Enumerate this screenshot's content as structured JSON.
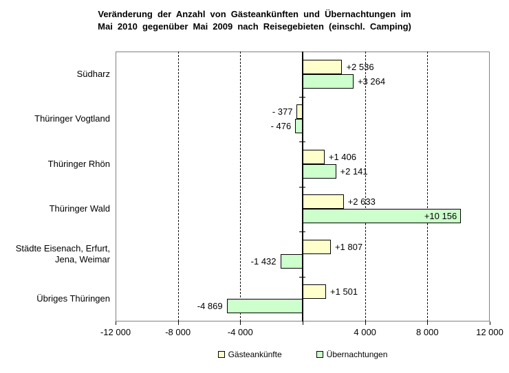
{
  "title": {
    "lines": [
      "Veränderung  der  Anzahl von Gästeankünften  und  Übernachtungen  im",
      "Mai 2010 gegenüber  Mai 2009 nach Reisegebieten  (einschl. Camping)"
    ]
  },
  "legend": {
    "items": [
      {
        "label": "Gästeankünfte",
        "color": "#FFFFCC"
      },
      {
        "label": "Übernachtungen",
        "color": "#CCFFCC"
      }
    ]
  },
  "colors": {
    "bar_yellow": "#FFFFCC",
    "bar_green": "#CCFFCC",
    "bar_border": "#000000",
    "plot_border": "#808080",
    "grid": "#000000",
    "axis": "#000000",
    "text": "#000000",
    "background": "#FFFFFF"
  },
  "chart_data": {
    "type": "bar",
    "orientation": "horizontal",
    "title": "Veränderung der Anzahl von Gästeankünften und Übernachtungen im Mai 2010 gegenüber Mai 2009 nach Reisegebieten (einschl. Camping)",
    "categories": [
      "Südharz",
      "Thüringer Vogtland",
      "Thüringer Rhön",
      "Thüringer Wald",
      "Städte Eisenach, Erfurt,\nJena, Weimar",
      "Übriges Thüringen"
    ],
    "series": [
      {
        "name": "Gästeankünfte",
        "color": "#FFFFCC",
        "values": [
          2536,
          -377,
          1406,
          2633,
          1807,
          1501
        ],
        "labels": [
          "+2 536",
          "- 377",
          "+1 406",
          "+2 633",
          "+1 807",
          "+1 501"
        ]
      },
      {
        "name": "Übernachtungen",
        "color": "#CCFFCC",
        "values": [
          3264,
          -476,
          2141,
          10156,
          -1432,
          -4869
        ],
        "labels": [
          "+3 264",
          "- 476",
          "+2 141",
          "+10 156",
          "-1 432",
          "-4 869"
        ]
      }
    ],
    "xlim": [
      -12000,
      12000
    ],
    "xticks": [
      -12000,
      -8000,
      -4000,
      0,
      4000,
      8000,
      12000
    ],
    "xtick_labels": [
      "-12 000",
      "-8 000",
      "-4 000",
      "",
      "4 000",
      "8 000",
      "12 000"
    ],
    "gridlines": [
      -8000,
      -4000,
      4000,
      8000
    ],
    "grid": "vertical-dashed",
    "legend_position": "bottom"
  }
}
